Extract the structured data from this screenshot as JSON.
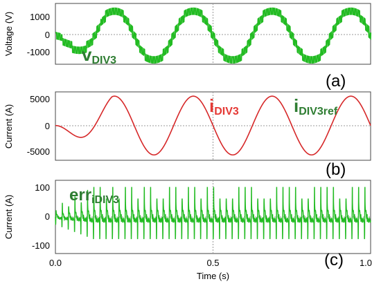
{
  "chart_data": [
    {
      "type": "line",
      "panel_label": "(a)",
      "ylabel": "Voltage (V)",
      "xlim": [
        0,
        1.0
      ],
      "ylim": [
        -1700,
        1900
      ],
      "yticks": [
        -1000,
        0,
        1000
      ],
      "ytick_labels": [
        "-1000",
        "0",
        "1000"
      ],
      "grid": "dotted",
      "waveform": {
        "fundamental_amplitude": 1550,
        "frequency_hz": 4,
        "phase_deg": 180,
        "start_amplitude": 300,
        "ramp_duration_s": 0.16,
        "pwm_ripple": 350,
        "ripple_frequency_hz": 100,
        "data_approximate": true
      },
      "series": [
        {
          "name": "vDIV3",
          "color": "#22bb22"
        }
      ],
      "annotations": [
        {
          "main": "v",
          "sub": "DIV3",
          "color": "#2e7d32"
        }
      ]
    },
    {
      "type": "line",
      "panel_label": "(b)",
      "ylabel": "Current (A)",
      "xlim": [
        0,
        1.0
      ],
      "ylim": [
        -6500,
        6300
      ],
      "yticks": [
        -5000,
        0,
        5000
      ],
      "ytick_labels": [
        "-5000",
        "0",
        "5000"
      ],
      "grid": "dotted",
      "waveform": {
        "fundamental_amplitude": 5500,
        "frequency_hz": 4,
        "phase_deg": 180,
        "start_amplitude": 0,
        "ramp_duration_s": 0.18,
        "data_approximate": true
      },
      "series": [
        {
          "name": "iDIV3",
          "color": "#d62728"
        },
        {
          "name": "iDIV3ref",
          "color": "#2e7d32"
        }
      ],
      "annotations": [
        {
          "main": "i",
          "sub": "DIV3",
          "color": "#e53935"
        },
        {
          "main": "i",
          "sub": "DIV3ref",
          "color": "#2e7d32"
        }
      ]
    },
    {
      "type": "line",
      "panel_label": "(c)",
      "ylabel": "Current (A)",
      "xlabel": "Time (s)",
      "xlim": [
        0,
        1.0
      ],
      "ylim": [
        -110,
        110
      ],
      "xticks": [
        0,
        0.5,
        1.0
      ],
      "xtick_labels": [
        "0.0",
        "0.5",
        "1.0"
      ],
      "yticks": [
        -100,
        0,
        100
      ],
      "ytick_labels": [
        "-100",
        "0",
        "100"
      ],
      "grid": "dotted",
      "waveform": {
        "spike_period_s": 0.02,
        "spike_peak": 90,
        "spike_trough": -80,
        "start_scale": 0.35,
        "ramp_duration_s": 0.12,
        "data_approximate": true
      },
      "series": [
        {
          "name": "erriDIV3",
          "color": "#22bb22"
        }
      ],
      "annotations": [
        {
          "main": "err",
          "sub": "iDIV3",
          "color": "#2e7d32"
        }
      ]
    }
  ]
}
